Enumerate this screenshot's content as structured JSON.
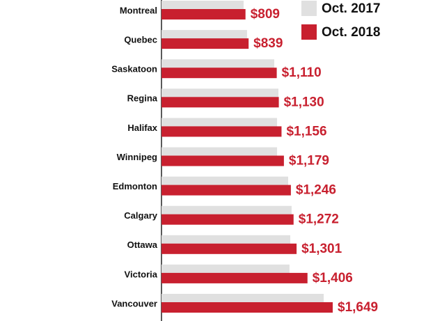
{
  "chart_data": {
    "type": "hbar",
    "categories": [
      "Montreal",
      "Quebec",
      "Saskatoon",
      "Regina",
      "Halifax",
      "Winnipeg",
      "Edmonton",
      "Calgary",
      "Ottawa",
      "Victoria",
      "Vancouver"
    ],
    "series": [
      {
        "name": "Oct. 2017",
        "color": "#e0e0e0",
        "values": [
          791,
          824,
          1086,
          1126,
          1113,
          1113,
          1220,
          1253,
          1240,
          1233,
          1562
        ]
      },
      {
        "name": "Oct. 2018",
        "color": "#c8202f",
        "values": [
          809,
          839,
          1110,
          1130,
          1156,
          1179,
          1246,
          1272,
          1301,
          1406,
          1649
        ],
        "value_labels": [
          "$809",
          "$839",
          "$1,110",
          "$1,130",
          "$1,156",
          "$1,179",
          "$1,246",
          "$1,272",
          "$1,301",
          "$1,406",
          "$1,649"
        ]
      }
    ],
    "legend": "top-right"
  }
}
